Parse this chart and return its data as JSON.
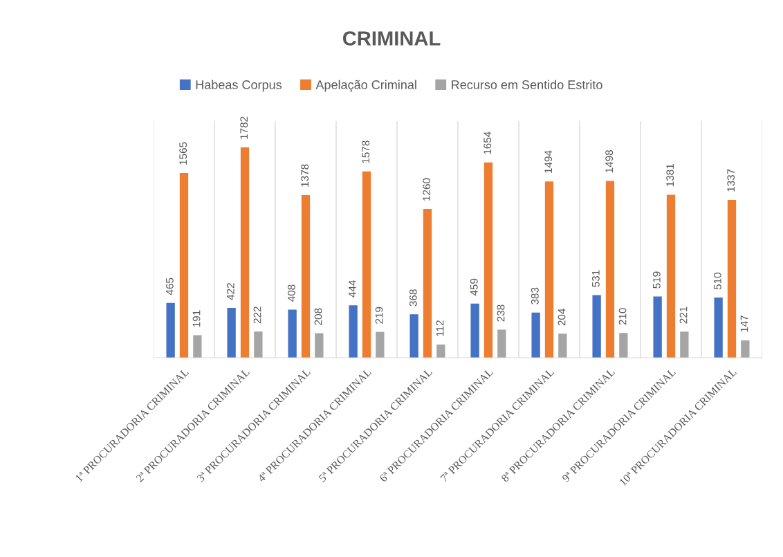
{
  "chart_data": {
    "type": "bar",
    "title": "CRIMINAL",
    "categories": [
      "1ª PROCURADORIA CRIMINAL",
      "2ª PROCURADORIA CRIMINAL",
      "3ª PROCURADORIA CRIMINAL",
      "4ª PROCURADORIA CRIMINAL",
      "5ª PROCURADORIA CRIMINAL",
      "6ª PROCURADORIA CRIMINAL",
      "7ª PROCURADORIA CRIMINAL",
      "8ª PROCURADORIA CRIMINAL",
      "9ª PROCURADORIA CRIMINAL",
      "10ª PROCURADORIA CRIMINAL"
    ],
    "series": [
      {
        "name": "Habeas Corpus",
        "color": "#4472c4",
        "values": [
          465,
          422,
          408,
          444,
          368,
          459,
          383,
          531,
          519,
          510
        ]
      },
      {
        "name": "Apelação Criminal",
        "color": "#ed7d31",
        "values": [
          1565,
          1782,
          1378,
          1578,
          1260,
          1654,
          1494,
          1498,
          1381,
          1337
        ]
      },
      {
        "name": "Recurso em Sentido Estrito",
        "color": "#a5a5a5",
        "values": [
          191,
          222,
          208,
          219,
          112,
          238,
          204,
          210,
          221,
          147
        ]
      }
    ],
    "data_labels": true,
    "grid": "x",
    "legend": "top"
  }
}
